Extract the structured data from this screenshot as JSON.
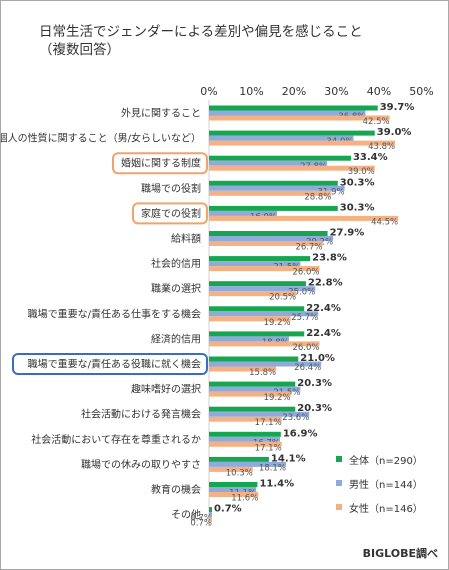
{
  "chart_data": {
    "type": "bar",
    "orientation": "horizontal",
    "title_lines": [
      "日常生活でジェンダーによる差別や偏見を感じること",
      "（複数回答）"
    ],
    "x_ticks": [
      "0%",
      "10%",
      "20%",
      "30%",
      "40%",
      "50%"
    ],
    "xlim": [
      0,
      50
    ],
    "grid": false,
    "legend_position": "bottom-right",
    "categories": [
      "外見に関すること",
      "個人の性質に関すること（男/女らしいなど）",
      "婚姻に関する制度",
      "職場での役割",
      "家庭での役割",
      "給料額",
      "社会的信用",
      "職業の選択",
      "職場で重要な/責任ある仕事をする機会",
      "経済的信用",
      "職場で重要な/責任ある役職に就く機会",
      "趣味嗜好の選択",
      "社会活動における発言機会",
      "社会活動において存在を尊重されるか",
      "職場での休みの取りやすさ",
      "教育の機会",
      "その他"
    ],
    "highlighted": [
      {
        "category": "婚姻に関する制度",
        "color": "#f0a46c"
      },
      {
        "category": "家庭での役割",
        "color": "#f0a46c"
      },
      {
        "category": "職場で重要な/責任ある役職に就く機会",
        "color": "#3a6cc4"
      }
    ],
    "series": [
      {
        "name": "全体（n=290）",
        "color": "#16a650",
        "values": [
          39.7,
          39.0,
          33.4,
          30.3,
          30.3,
          27.9,
          23.8,
          22.8,
          22.4,
          22.4,
          21.0,
          20.3,
          20.3,
          16.9,
          14.1,
          11.4,
          0.7
        ]
      },
      {
        "name": "男性（n=144）",
        "color": "#8faadc",
        "values": [
          36.8,
          34.0,
          27.8,
          31.9,
          16.0,
          29.2,
          21.5,
          25.0,
          25.7,
          18.8,
          26.4,
          21.5,
          23.6,
          16.7,
          18.1,
          11.1,
          0.7
        ]
      },
      {
        "name": "女性（n=146）",
        "color": "#f4b183",
        "values": [
          42.5,
          43.8,
          39.0,
          28.8,
          44.5,
          26.7,
          26.0,
          20.5,
          19.2,
          26.0,
          15.8,
          19.2,
          17.1,
          17.1,
          10.3,
          11.6,
          0.7
        ]
      }
    ],
    "value_labels": [
      [
        "39.7%",
        "36.8%",
        "42.5%"
      ],
      [
        "39.0%",
        "34.0%",
        "43.8%"
      ],
      [
        "33.4%",
        "27.8%",
        "39.0%"
      ],
      [
        "30.3%",
        "31.9%",
        "28.8%"
      ],
      [
        "30.3%",
        "16.0%",
        "44.5%"
      ],
      [
        "27.9%",
        "29.2%",
        "26.7%"
      ],
      [
        "23.8%",
        "21.5%",
        "26.0%"
      ],
      [
        "22.8%",
        "25.0%",
        "20.5%"
      ],
      [
        "22.4%",
        "25.7%",
        "19.2%"
      ],
      [
        "22.4%",
        "18.8%",
        "26.0%"
      ],
      [
        "21.0%",
        "26.4%",
        "15.8%"
      ],
      [
        "20.3%",
        "21.5%",
        "19.2%"
      ],
      [
        "20.3%",
        "23.6%",
        "17.1%"
      ],
      [
        "16.9%",
        "16.7%",
        "17.1%"
      ],
      [
        "14.1%",
        "18.1%",
        "10.3%"
      ],
      [
        "11.4%",
        "11.1%",
        "11.6%"
      ],
      [
        "0.7%",
        "0.7%",
        "0.7%"
      ]
    ]
  },
  "source_note": "BIGLOBE調べ"
}
